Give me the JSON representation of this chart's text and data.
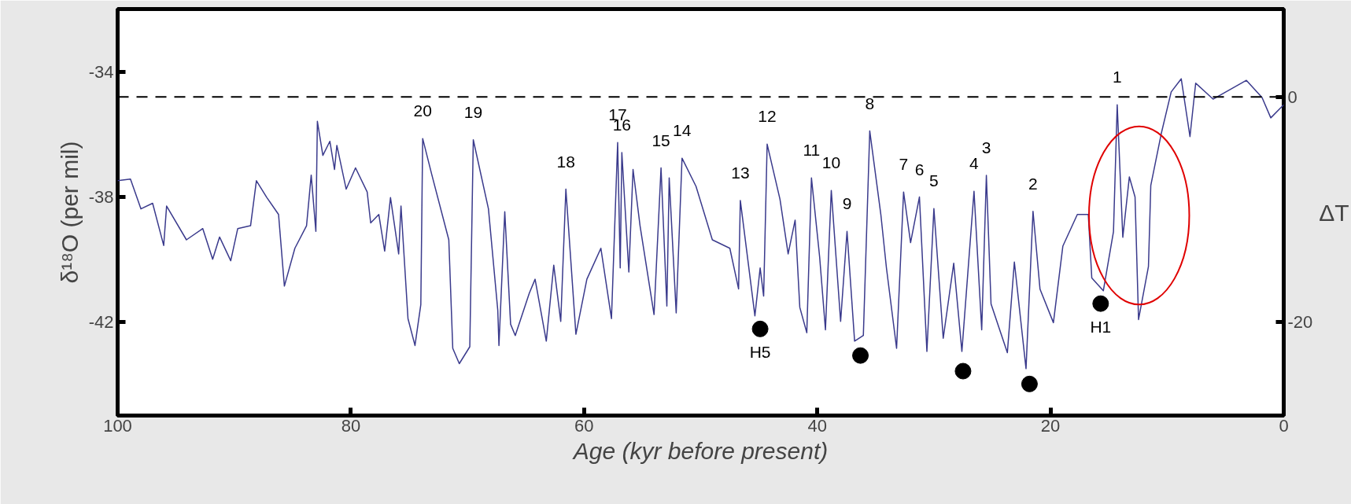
{
  "chart_data": {
    "type": "line",
    "xlabel": "Age (kyr before present)",
    "ylabel": "δ¹⁸O (per mil)",
    "y2label": "ΔT",
    "xlim": [
      100,
      0
    ],
    "xticks": [
      100,
      80,
      60,
      40,
      20,
      0
    ],
    "ylim": [
      -45,
      -32
    ],
    "yticks": [
      -34,
      -38,
      -42
    ],
    "y2lim": [
      -28.3,
      7.8
    ],
    "y2ticks": [
      0,
      -20
    ],
    "grid": false,
    "series": [
      {
        "color": "#3a3a8c",
        "marker": "none",
        "line_style": "solid",
        "x": [
          100,
          98.9,
          98.0,
          97.0,
          96.05,
          95.8,
          94.1,
          92.7,
          91.85,
          91.26,
          90.3,
          89.7,
          88.6,
          88.1,
          87.2,
          86.2,
          85.7,
          84.8,
          83.8,
          83.4,
          83.0,
          82.87,
          82.4,
          81.8,
          81.4,
          81.2,
          80.4,
          79.6,
          78.6,
          78.3,
          77.6,
          77.1,
          76.6,
          75.9,
          75.7,
          75.1,
          74.5,
          74.0,
          73.84,
          73.05,
          71.6,
          71.26,
          70.7,
          69.8,
          69.5,
          68.2,
          67.4,
          67.3,
          66.8,
          66.3,
          65.9,
          64.7,
          64.2,
          63.24,
          62.6,
          62.0,
          61.56,
          60.7,
          59.76,
          58.56,
          57.65,
          57.12,
          56.9,
          56.76,
          56.16,
          55.8,
          55.2,
          54.0,
          53.4,
          52.9,
          52.7,
          52.1,
          51.6,
          50.4,
          49.0,
          47.5,
          46.75,
          46.6,
          45.35,
          44.9,
          44.6,
          44.3,
          43.2,
          42.5,
          41.9,
          41.5,
          40.9,
          40.5,
          39.8,
          39.3,
          38.8,
          38.0,
          37.45,
          36.8,
          36.05,
          35.5,
          34.55,
          34.07,
          33.2,
          32.6,
          32.0,
          31.24,
          30.6,
          30.0,
          29.2,
          28.3,
          27.6,
          26.56,
          25.9,
          25.5,
          25.1,
          23.7,
          23.1,
          22.1,
          21.5,
          20.9,
          19.75,
          18.94,
          17.7,
          16.76,
          16.46,
          15.47,
          14.6,
          14.28,
          13.8,
          13.24,
          12.75,
          12.45,
          11.6,
          11.4,
          10.5,
          9.65,
          8.79,
          8.04,
          7.55,
          6.06,
          3.2,
          1.86,
          1.11,
          0
        ],
        "values": [
          -37.49,
          -37.44,
          -38.39,
          -38.21,
          -39.56,
          -38.3,
          -39.38,
          -39.02,
          -40.0,
          -39.29,
          -40.05,
          -39.02,
          -38.93,
          -37.49,
          -38.03,
          -38.57,
          -40.86,
          -39.65,
          -38.93,
          -37.31,
          -39.11,
          -35.59,
          -36.68,
          -36.23,
          -37.13,
          -36.36,
          -37.76,
          -37.08,
          -37.85,
          -38.84,
          -38.57,
          -39.74,
          -38.03,
          -39.83,
          -38.3,
          -41.9,
          -42.76,
          -41.45,
          -36.14,
          -37.31,
          -39.38,
          -42.85,
          -43.34,
          -42.8,
          -36.18,
          -38.39,
          -41.63,
          -42.76,
          -38.48,
          -42.08,
          -42.44,
          -41.09,
          -40.64,
          -42.62,
          -40.19,
          -41.99,
          -37.76,
          -42.4,
          -40.64,
          -39.65,
          -41.9,
          -36.27,
          -40.28,
          -36.59,
          -40.41,
          -37.13,
          -38.93,
          -41.77,
          -37.08,
          -41.5,
          -37.4,
          -41.72,
          -36.77,
          -37.67,
          -39.38,
          -39.65,
          -40.95,
          -38.12,
          -41.81,
          -40.28,
          -41.18,
          -36.32,
          -38.08,
          -39.83,
          -38.75,
          -41.54,
          -42.35,
          -37.4,
          -39.92,
          -42.26,
          -37.8,
          -41.99,
          -39.11,
          -42.62,
          -42.44,
          -35.9,
          -38.57,
          -40.28,
          -42.85,
          -37.85,
          -39.47,
          -38.01,
          -42.95,
          -38.38,
          -42.53,
          -40.13,
          -42.95,
          -37.83,
          -42.26,
          -37.32,
          -41.43,
          -42.99,
          -40.09,
          -43.5,
          -38.47,
          -40.96,
          -42.03,
          -39.58,
          -38.57,
          -38.57,
          -40.6,
          -41.01,
          -39.12,
          -35.06,
          -39.3,
          -37.37,
          -38.01,
          -41.93,
          -40.23,
          -37.64,
          -35.98,
          -34.65,
          -34.23,
          -36.08,
          -34.37,
          -34.88,
          -34.28,
          -34.83,
          -35.48,
          -35.06
        ]
      },
      {
        "type": "scatter",
        "color": "#000000",
        "marker": "circle",
        "x": [
          44.9,
          36.3,
          27.5,
          21.8,
          15.7
        ],
        "values": [
          -42.23,
          -43.08,
          -43.58,
          -43.99,
          -41.42
        ]
      }
    ],
    "ref_lines": [
      {
        "axis": "y2",
        "value": 0,
        "color": "#000000",
        "line_style": "dashed"
      }
    ],
    "annotations": [
      {
        "text": "20",
        "x": 73.84,
        "y": -36.14
      },
      {
        "text": "19",
        "x": 69.5,
        "y": -36.18
      },
      {
        "text": "18",
        "x": 61.56,
        "y": -37.76
      },
      {
        "text": "17",
        "x": 57.12,
        "y": -36.27
      },
      {
        "text": "16",
        "x": 56.76,
        "y": -36.59
      },
      {
        "text": "15",
        "x": 53.4,
        "y": -37.08
      },
      {
        "text": "14",
        "x": 51.6,
        "y": -36.77
      },
      {
        "text": "13",
        "x": 46.6,
        "y": -38.12
      },
      {
        "text": "12",
        "x": 44.3,
        "y": -36.32
      },
      {
        "text": "11",
        "x": 40.5,
        "y": -37.4
      },
      {
        "text": "10",
        "x": 38.8,
        "y": -37.8
      },
      {
        "text": "9",
        "x": 37.45,
        "y": -39.11
      },
      {
        "text": "8",
        "x": 35.5,
        "y": -35.9
      },
      {
        "text": "7",
        "x": 32.6,
        "y": -37.85
      },
      {
        "text": "6",
        "x": 31.24,
        "y": -38.01
      },
      {
        "text": "5",
        "x": 30.0,
        "y": -38.38
      },
      {
        "text": "4",
        "x": 26.56,
        "y": -37.83
      },
      {
        "text": "3",
        "x": 25.5,
        "y": -37.32
      },
      {
        "text": "2",
        "x": 21.5,
        "y": -38.47
      },
      {
        "text": "1",
        "x": 14.28,
        "y": -35.06
      },
      {
        "text": "H5",
        "x": 44.9,
        "y": -42.23
      },
      {
        "text": "H1",
        "x": 15.7,
        "y": -41.42
      }
    ]
  }
}
